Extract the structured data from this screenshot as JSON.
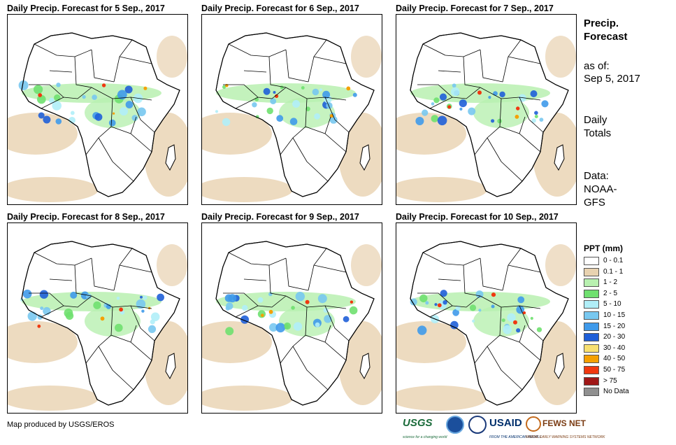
{
  "panels": [
    {
      "title": "Daily Precip. Forecast for 5 Sep., 2017"
    },
    {
      "title": "Daily Precip. Forecast for 6 Sep., 2017"
    },
    {
      "title": "Daily Precip. Forecast for 7 Sep., 2017"
    },
    {
      "title": "Daily Precip. Forecast for 8 Sep., 2017"
    },
    {
      "title": "Daily Precip. Forecast for 9 Sep., 2017"
    },
    {
      "title": "Daily Precip. Forecast for 10 Sep., 2017"
    }
  ],
  "sidebar": {
    "heading_line1": "Precip.",
    "heading_line2": "Forecast",
    "asof_label": "as of:",
    "asof_date": "Sep 5, 2017",
    "totals_line1": "Daily",
    "totals_line2": "Totals",
    "data_line1": "Data:",
    "data_line2": "NOAA-",
    "data_line3": "GFS"
  },
  "legend": {
    "title": "PPT (mm)",
    "items": [
      {
        "label": "0 - 0.1",
        "color": "#ffffff"
      },
      {
        "label": "0.1 - 1",
        "color": "#e8d2b0"
      },
      {
        "label": "1 - 2",
        "color": "#b8f0b0"
      },
      {
        "label": "2 - 5",
        "color": "#6fe06f"
      },
      {
        "label": "5 - 10",
        "color": "#b0eef8"
      },
      {
        "label": "10 - 15",
        "color": "#78c8f0"
      },
      {
        "label": "15 - 20",
        "color": "#3f9aea"
      },
      {
        "label": "20 - 30",
        "color": "#1f5fd8"
      },
      {
        "label": "30 - 40",
        "color": "#f8e070"
      },
      {
        "label": "40 - 50",
        "color": "#f5a000"
      },
      {
        "label": "50 - 75",
        "color": "#f03810"
      },
      {
        "label": "> 75",
        "color": "#a01818"
      },
      {
        "label": "No Data",
        "color": "#909090"
      }
    ]
  },
  "footer": {
    "credit": "Map produced by USGS/EROS",
    "usgs_logo": "USGS",
    "usgs_tagline": "science for a changing world",
    "usaid_logo": "USAID",
    "usaid_tagline": "FROM THE AMERICAN PEOPLE",
    "fews_logo": "FEWS NET",
    "fews_tagline": "FAMINE EARLY WARNING SYSTEMS NETWORK"
  }
}
